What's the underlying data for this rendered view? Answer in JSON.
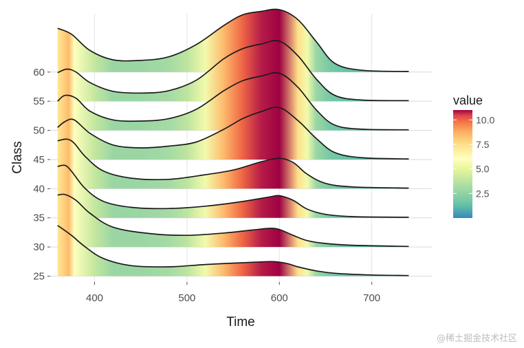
{
  "chart_data": {
    "type": "area",
    "subtype": "ridgeline",
    "xlabel": "Time",
    "ylabel": "Class",
    "xlim": [
      352,
      765
    ],
    "ylim": [
      24,
      70
    ],
    "x_ticks": [
      400,
      500,
      600,
      700
    ],
    "y_ticks": [
      25,
      30,
      35,
      40,
      45,
      50,
      55,
      60
    ],
    "x_range": [
      360,
      740
    ],
    "grid": true,
    "legend": {
      "title": "value",
      "position": "right",
      "ticks": [
        "2.5",
        "5.0",
        "7.5",
        "10.0"
      ],
      "range": [
        0,
        11
      ]
    },
    "fill_palette": "Spectral (reversed)",
    "fill_profile": {
      "x": [
        360,
        368,
        372,
        378,
        400,
        420,
        450,
        480,
        500,
        520,
        540,
        560,
        580,
        600,
        620,
        630,
        640,
        655,
        680,
        740
      ],
      "values": [
        7.2,
        8.0,
        8.5,
        6.0,
        4.0,
        2.8,
        2.8,
        3.1,
        3.8,
        5.5,
        8.5,
        10.0,
        10.8,
        11.0,
        7.5,
        5.5,
        2.8,
        1.8,
        1.2,
        1.0
      ]
    },
    "series": [
      {
        "name": "25",
        "baseline": 25,
        "x": [
          360,
          375,
          390,
          410,
          440,
          480,
          520,
          560,
          590,
          600,
          610,
          620,
          640,
          660,
          700,
          740
        ],
        "y": [
          33.7,
          32.0,
          30.0,
          28.0,
          26.8,
          26.6,
          27.0,
          27.3,
          27.5,
          27.4,
          27.1,
          26.6,
          25.9,
          25.5,
          25.2,
          25.1
        ]
      },
      {
        "name": "30",
        "baseline": 30,
        "x": [
          360,
          368,
          380,
          395,
          420,
          460,
          500,
          540,
          570,
          590,
          600,
          615,
          630,
          650,
          680,
          740
        ],
        "y": [
          38.9,
          39.0,
          38.0,
          35.8,
          33.4,
          32.3,
          32.0,
          32.4,
          32.9,
          33.2,
          33.0,
          32.0,
          31.1,
          30.6,
          30.3,
          30.1
        ]
      },
      {
        "name": "35",
        "baseline": 35,
        "x": [
          360,
          368,
          375,
          390,
          410,
          440,
          480,
          520,
          560,
          590,
          600,
          615,
          630,
          650,
          680,
          740
        ],
        "y": [
          43.8,
          44.0,
          43.0,
          40.0,
          37.8,
          36.8,
          36.6,
          37.0,
          37.8,
          38.6,
          38.8,
          38.0,
          36.5,
          35.6,
          35.2,
          35.1
        ]
      },
      {
        "name": "40",
        "baseline": 40,
        "x": [
          360,
          370,
          378,
          390,
          410,
          440,
          480,
          520,
          550,
          580,
          600,
          615,
          630,
          650,
          680,
          740
        ],
        "y": [
          48.2,
          48.5,
          47.8,
          45.5,
          43.0,
          41.8,
          41.6,
          42.4,
          43.2,
          44.6,
          45.2,
          44.5,
          42.5,
          40.9,
          40.3,
          40.1
        ]
      },
      {
        "name": "45",
        "baseline": 45,
        "x": [
          360,
          368,
          378,
          395,
          420,
          450,
          480,
          510,
          540,
          560,
          580,
          600,
          620,
          640,
          660,
          690,
          740
        ],
        "y": [
          50.5,
          51.5,
          51.8,
          49.5,
          47.5,
          47.0,
          47.3,
          48.0,
          50.2,
          52.0,
          53.2,
          53.9,
          51.7,
          48.6,
          46.2,
          45.3,
          45.1
        ]
      },
      {
        "name": "50",
        "baseline": 50,
        "x": [
          360,
          368,
          380,
          395,
          420,
          450,
          480,
          510,
          540,
          560,
          580,
          600,
          620,
          640,
          660,
          690,
          740
        ],
        "y": [
          55.0,
          56.0,
          55.5,
          53.3,
          51.8,
          51.6,
          52.0,
          53.6,
          56.8,
          58.5,
          59.3,
          59.8,
          57.4,
          53.5,
          50.9,
          50.2,
          50.1
        ]
      },
      {
        "name": "55",
        "baseline": 55,
        "x": [
          360,
          370,
          380,
          395,
          420,
          450,
          480,
          510,
          540,
          560,
          580,
          600,
          620,
          640,
          660,
          690,
          740
        ],
        "y": [
          59.9,
          60.5,
          60.0,
          58.2,
          56.7,
          56.4,
          56.8,
          58.6,
          62.3,
          64.0,
          64.8,
          65.3,
          62.8,
          58.8,
          56.0,
          55.2,
          55.1
        ]
      },
      {
        "name": "60",
        "baseline": 60,
        "x": [
          360,
          375,
          395,
          420,
          450,
          480,
          510,
          540,
          560,
          580,
          600,
          620,
          640,
          660,
          690,
          740
        ],
        "y": [
          67.5,
          66.5,
          63.7,
          62.1,
          62.0,
          62.6,
          64.7,
          68.0,
          69.8,
          70.4,
          70.7,
          69.0,
          65.2,
          61.5,
          60.3,
          60.1
        ]
      }
    ]
  },
  "watermark": "@稀土掘金技术社区"
}
